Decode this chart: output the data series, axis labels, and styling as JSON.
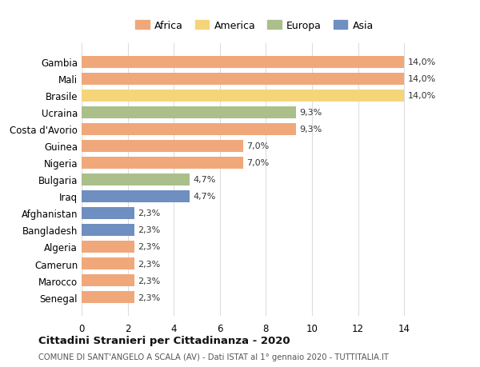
{
  "countries": [
    "Senegal",
    "Marocco",
    "Camerun",
    "Algeria",
    "Bangladesh",
    "Afghanistan",
    "Iraq",
    "Bulgaria",
    "Nigeria",
    "Guinea",
    "Costa d'Avorio",
    "Ucraina",
    "Brasile",
    "Mali",
    "Gambia"
  ],
  "values": [
    2.3,
    2.3,
    2.3,
    2.3,
    2.3,
    2.3,
    4.7,
    4.7,
    7.0,
    7.0,
    9.3,
    9.3,
    14.0,
    14.0,
    14.0
  ],
  "continents": [
    "Africa",
    "Africa",
    "Africa",
    "Africa",
    "Asia",
    "Asia",
    "Asia",
    "Europa",
    "Africa",
    "Africa",
    "Africa",
    "Europa",
    "America",
    "Africa",
    "Africa"
  ],
  "continent_colors": {
    "Africa": "#F0A87A",
    "America": "#F5D57A",
    "Europa": "#AABF8A",
    "Asia": "#6E8FBF"
  },
  "labels": [
    "2,3%",
    "2,3%",
    "2,3%",
    "2,3%",
    "2,3%",
    "2,3%",
    "4,7%",
    "4,7%",
    "7,0%",
    "7,0%",
    "9,3%",
    "9,3%",
    "14,0%",
    "14,0%",
    "14,0%"
  ],
  "title": "Cittadini Stranieri per Cittadinanza - 2020",
  "subtitle": "COMUNE DI SANT'ANGELO A SCALA (AV) - Dati ISTAT al 1° gennaio 2020 - TUTTITALIA.IT",
  "xlim": [
    0,
    15
  ],
  "xticks": [
    0,
    2,
    4,
    6,
    8,
    10,
    12,
    14
  ],
  "legend_order": [
    "Africa",
    "America",
    "Europa",
    "Asia"
  ],
  "background_color": "#ffffff",
  "grid_color": "#dddddd"
}
